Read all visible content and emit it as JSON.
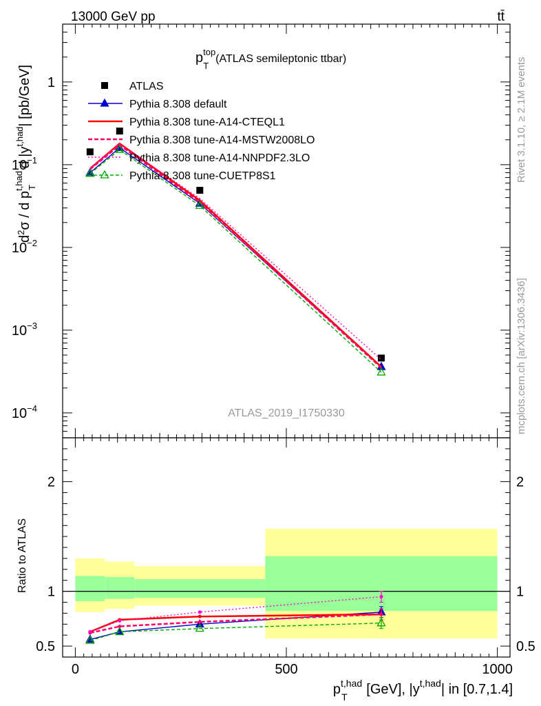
{
  "header": {
    "left": "13000 GeV pp",
    "right": "tt̄"
  },
  "title": {
    "main": "p",
    "sup": "top",
    "sub": "T",
    "rest": "(ATLAS semileptonic ttbar)"
  },
  "side_labels": {
    "top": "Rivet 3.1.10, ≥ 2.1M events",
    "bottom": "mcplots.cern.ch [arXiv:1306.3436]"
  },
  "analysis_tag": "ATLAS_2019_I1750330",
  "colors": {
    "data": "#000000",
    "default": "#0000cc",
    "cteql1": "#ff0000",
    "mstw": "#ff0066",
    "nnpdf": "#ff00cc",
    "cuetp8s1": "#00aa00",
    "band_inner": "#99ff99",
    "band_outer": "#ffff99"
  },
  "chart_data": [
    {
      "type": "line",
      "panel": "main",
      "yscale": "log",
      "ylabel": "d²σ / d p_T^{t,had} d |y^{t,had}| [pb/GeV]",
      "ylim": [
        5e-05,
        5
      ],
      "xlim": [
        -30,
        1030
      ],
      "yticks": [
        {
          "v": 1,
          "label": "1"
        },
        {
          "v": 0.1,
          "label": "10",
          "exp": "−1"
        },
        {
          "v": 0.01,
          "label": "10",
          "exp": "−2"
        },
        {
          "v": 0.001,
          "label": "10",
          "exp": "−3"
        },
        {
          "v": 0.0001,
          "label": "10",
          "exp": "−4"
        }
      ],
      "legend_position": "top-left",
      "series": [
        {
          "name": "ATLAS",
          "key": "data",
          "marker": "square",
          "x": [
            35,
            105,
            295,
            725
          ],
          "y": [
            0.143,
            0.255,
            0.049,
            0.00046
          ]
        },
        {
          "name": "Pythia 8.308 default",
          "key": "default",
          "marker": "triangle",
          "dash": "",
          "x": [
            35,
            105,
            295,
            725
          ],
          "y": [
            0.08,
            0.16,
            0.034,
            0.00036
          ]
        },
        {
          "name": "Pythia 8.308 tune-A14-CTEQL1",
          "key": "cteql1",
          "marker": "none",
          "dash": "",
          "width": 2.5,
          "x": [
            35,
            105,
            295,
            725
          ],
          "y": [
            0.09,
            0.18,
            0.037,
            0.00036
          ]
        },
        {
          "name": "Pythia 8.308 tune-A14-MSTW2008LO",
          "key": "mstw",
          "marker": "none",
          "dash": "6,3",
          "width": 2.5,
          "x": [
            35,
            105,
            295,
            725
          ],
          "y": [
            0.088,
            0.172,
            0.035,
            0.00035
          ]
        },
        {
          "name": "Pythia 8.308 tune-A14-NNPDF2.3LO",
          "key": "nnpdf",
          "marker": "none",
          "dash": "2,3",
          "x": [
            35,
            105,
            295,
            725
          ],
          "y": [
            0.09,
            0.178,
            0.039,
            0.00044
          ]
        },
        {
          "name": "Pythia 8.308 tune-CUETP8S1",
          "key": "cuetp8s1",
          "marker": "open-triangle",
          "dash": "5,3",
          "x": [
            35,
            105,
            295,
            725
          ],
          "y": [
            0.078,
            0.152,
            0.032,
            0.00031
          ]
        }
      ]
    },
    {
      "type": "line",
      "panel": "ratio",
      "ylabel": "Ratio to ATLAS",
      "xlabel": "p_T^{t,had} [GeV], |y^{t,had}| in [0.7,1.4]",
      "ylim": [
        0.4,
        2.4
      ],
      "yticks": [
        0.5,
        1,
        2
      ],
      "xticks": [
        0,
        500,
        1000
      ],
      "bands": [
        {
          "x0": 0,
          "x1": 70,
          "inner": [
            0.91,
            1.14
          ],
          "outer": [
            0.81,
            1.3
          ]
        },
        {
          "x0": 70,
          "x1": 140,
          "inner": [
            0.93,
            1.13
          ],
          "outer": [
            0.84,
            1.27
          ]
        },
        {
          "x0": 140,
          "x1": 450,
          "inner": [
            0.94,
            1.11
          ],
          "outer": [
            0.87,
            1.23
          ]
        },
        {
          "x0": 450,
          "x1": 1000,
          "inner": [
            0.82,
            1.32
          ],
          "outer": [
            0.57,
            1.57
          ]
        }
      ],
      "series": [
        {
          "name": "Pythia 8.308 default",
          "key": "default",
          "marker": "triangle",
          "dash": "",
          "x": [
            35,
            105,
            295,
            725
          ],
          "y": [
            0.56,
            0.63,
            0.7,
            0.81
          ]
        },
        {
          "name": "Pythia 8.308 tune-A14-CTEQL1",
          "key": "cteql1",
          "marker": "none",
          "dash": "",
          "width": 2.5,
          "x": [
            35,
            105,
            295,
            725
          ],
          "y": [
            0.63,
            0.74,
            0.77,
            0.79
          ]
        },
        {
          "name": "Pythia 8.308 tune-A14-MSTW2008LO",
          "key": "mstw",
          "marker": "none",
          "dash": "6,3",
          "width": 2.5,
          "x": [
            35,
            105,
            295,
            725
          ],
          "y": [
            0.62,
            0.68,
            0.72,
            0.79
          ]
        },
        {
          "name": "Pythia 8.308 tune-A14-NNPDF2.3LO",
          "key": "nnpdf",
          "marker": "none",
          "dash": "2,3",
          "x": [
            35,
            105,
            295,
            725
          ],
          "y": [
            0.63,
            0.73,
            0.81,
            0.95
          ]
        },
        {
          "name": "Pythia 8.308 tune-CUETP8S1",
          "key": "cuetp8s1",
          "marker": "open-triangle",
          "dash": "5,3",
          "x": [
            35,
            105,
            295,
            725
          ],
          "y": [
            0.55,
            0.63,
            0.66,
            0.71
          ]
        }
      ]
    }
  ]
}
